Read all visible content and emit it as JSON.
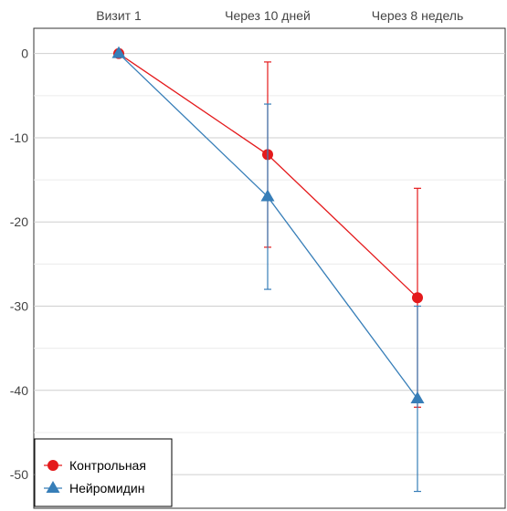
{
  "chart_data": {
    "type": "line",
    "categories": [
      "Визит 1",
      "Через 10 дней",
      "Через 8 недель"
    ],
    "series": [
      {
        "name": "Контрольная",
        "color": "#e41a1c",
        "marker": "circle",
        "values": [
          0,
          -12,
          -29
        ],
        "error_low": [
          0,
          -23,
          -42
        ],
        "error_high": [
          0,
          -1,
          -16
        ]
      },
      {
        "name": "Нейромидин",
        "color": "#377eb8",
        "marker": "triangle",
        "values": [
          0,
          -17,
          -41
        ],
        "error_low": [
          0,
          -28,
          -52
        ],
        "error_high": [
          0,
          -6,
          -30
        ]
      }
    ],
    "y_ticks": [
      "0",
      "-10",
      "-20",
      "-30",
      "-40",
      "-50"
    ],
    "ylim": [
      -54,
      3
    ],
    "x_axis_position": "top",
    "grid": true,
    "legend_position": "bottom-left"
  }
}
